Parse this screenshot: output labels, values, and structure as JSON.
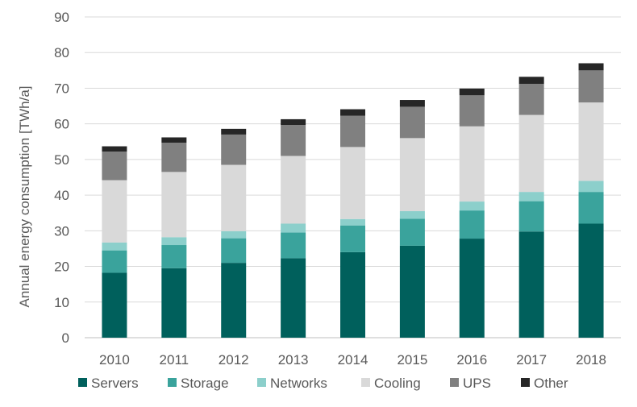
{
  "chart_data": {
    "type": "bar",
    "stacked": true,
    "title": "",
    "xlabel": "",
    "ylabel": "Annual energy consumption [TWh/a]",
    "ylim": [
      0,
      90
    ],
    "yticks": [
      "0",
      "10",
      "20",
      "30",
      "40",
      "50",
      "60",
      "70",
      "80",
      "90"
    ],
    "grid": true,
    "legend_position": "bottom",
    "categories": [
      "2010",
      "2011",
      "2012",
      "2013",
      "2014",
      "2015",
      "2016",
      "2017",
      "2018"
    ],
    "series": [
      {
        "name": "Servers",
        "color": "#00605c",
        "values": [
          18.2,
          19.5,
          21.0,
          22.3,
          24.0,
          25.8,
          27.8,
          29.8,
          32.0
        ]
      },
      {
        "name": "Storage",
        "color": "#3aa39c",
        "values": [
          6.3,
          6.5,
          6.9,
          7.2,
          7.5,
          7.6,
          7.9,
          8.5,
          8.9
        ]
      },
      {
        "name": "Networks",
        "color": "#8ccfcb",
        "values": [
          2.2,
          2.2,
          2.0,
          2.5,
          1.8,
          2.1,
          2.5,
          2.6,
          3.1
        ]
      },
      {
        "name": "Cooling",
        "color": "#d9d9d9",
        "values": [
          17.5,
          18.3,
          18.6,
          19.0,
          20.2,
          20.5,
          21.1,
          21.6,
          22.0
        ]
      },
      {
        "name": "UPS",
        "color": "#808080",
        "values": [
          8.0,
          8.2,
          8.5,
          8.7,
          8.8,
          8.8,
          8.7,
          8.7,
          9.0
        ]
      },
      {
        "name": "Other",
        "color": "#262626",
        "values": [
          1.5,
          1.5,
          1.6,
          1.6,
          1.8,
          1.9,
          1.9,
          2.0,
          2.0
        ]
      }
    ]
  }
}
